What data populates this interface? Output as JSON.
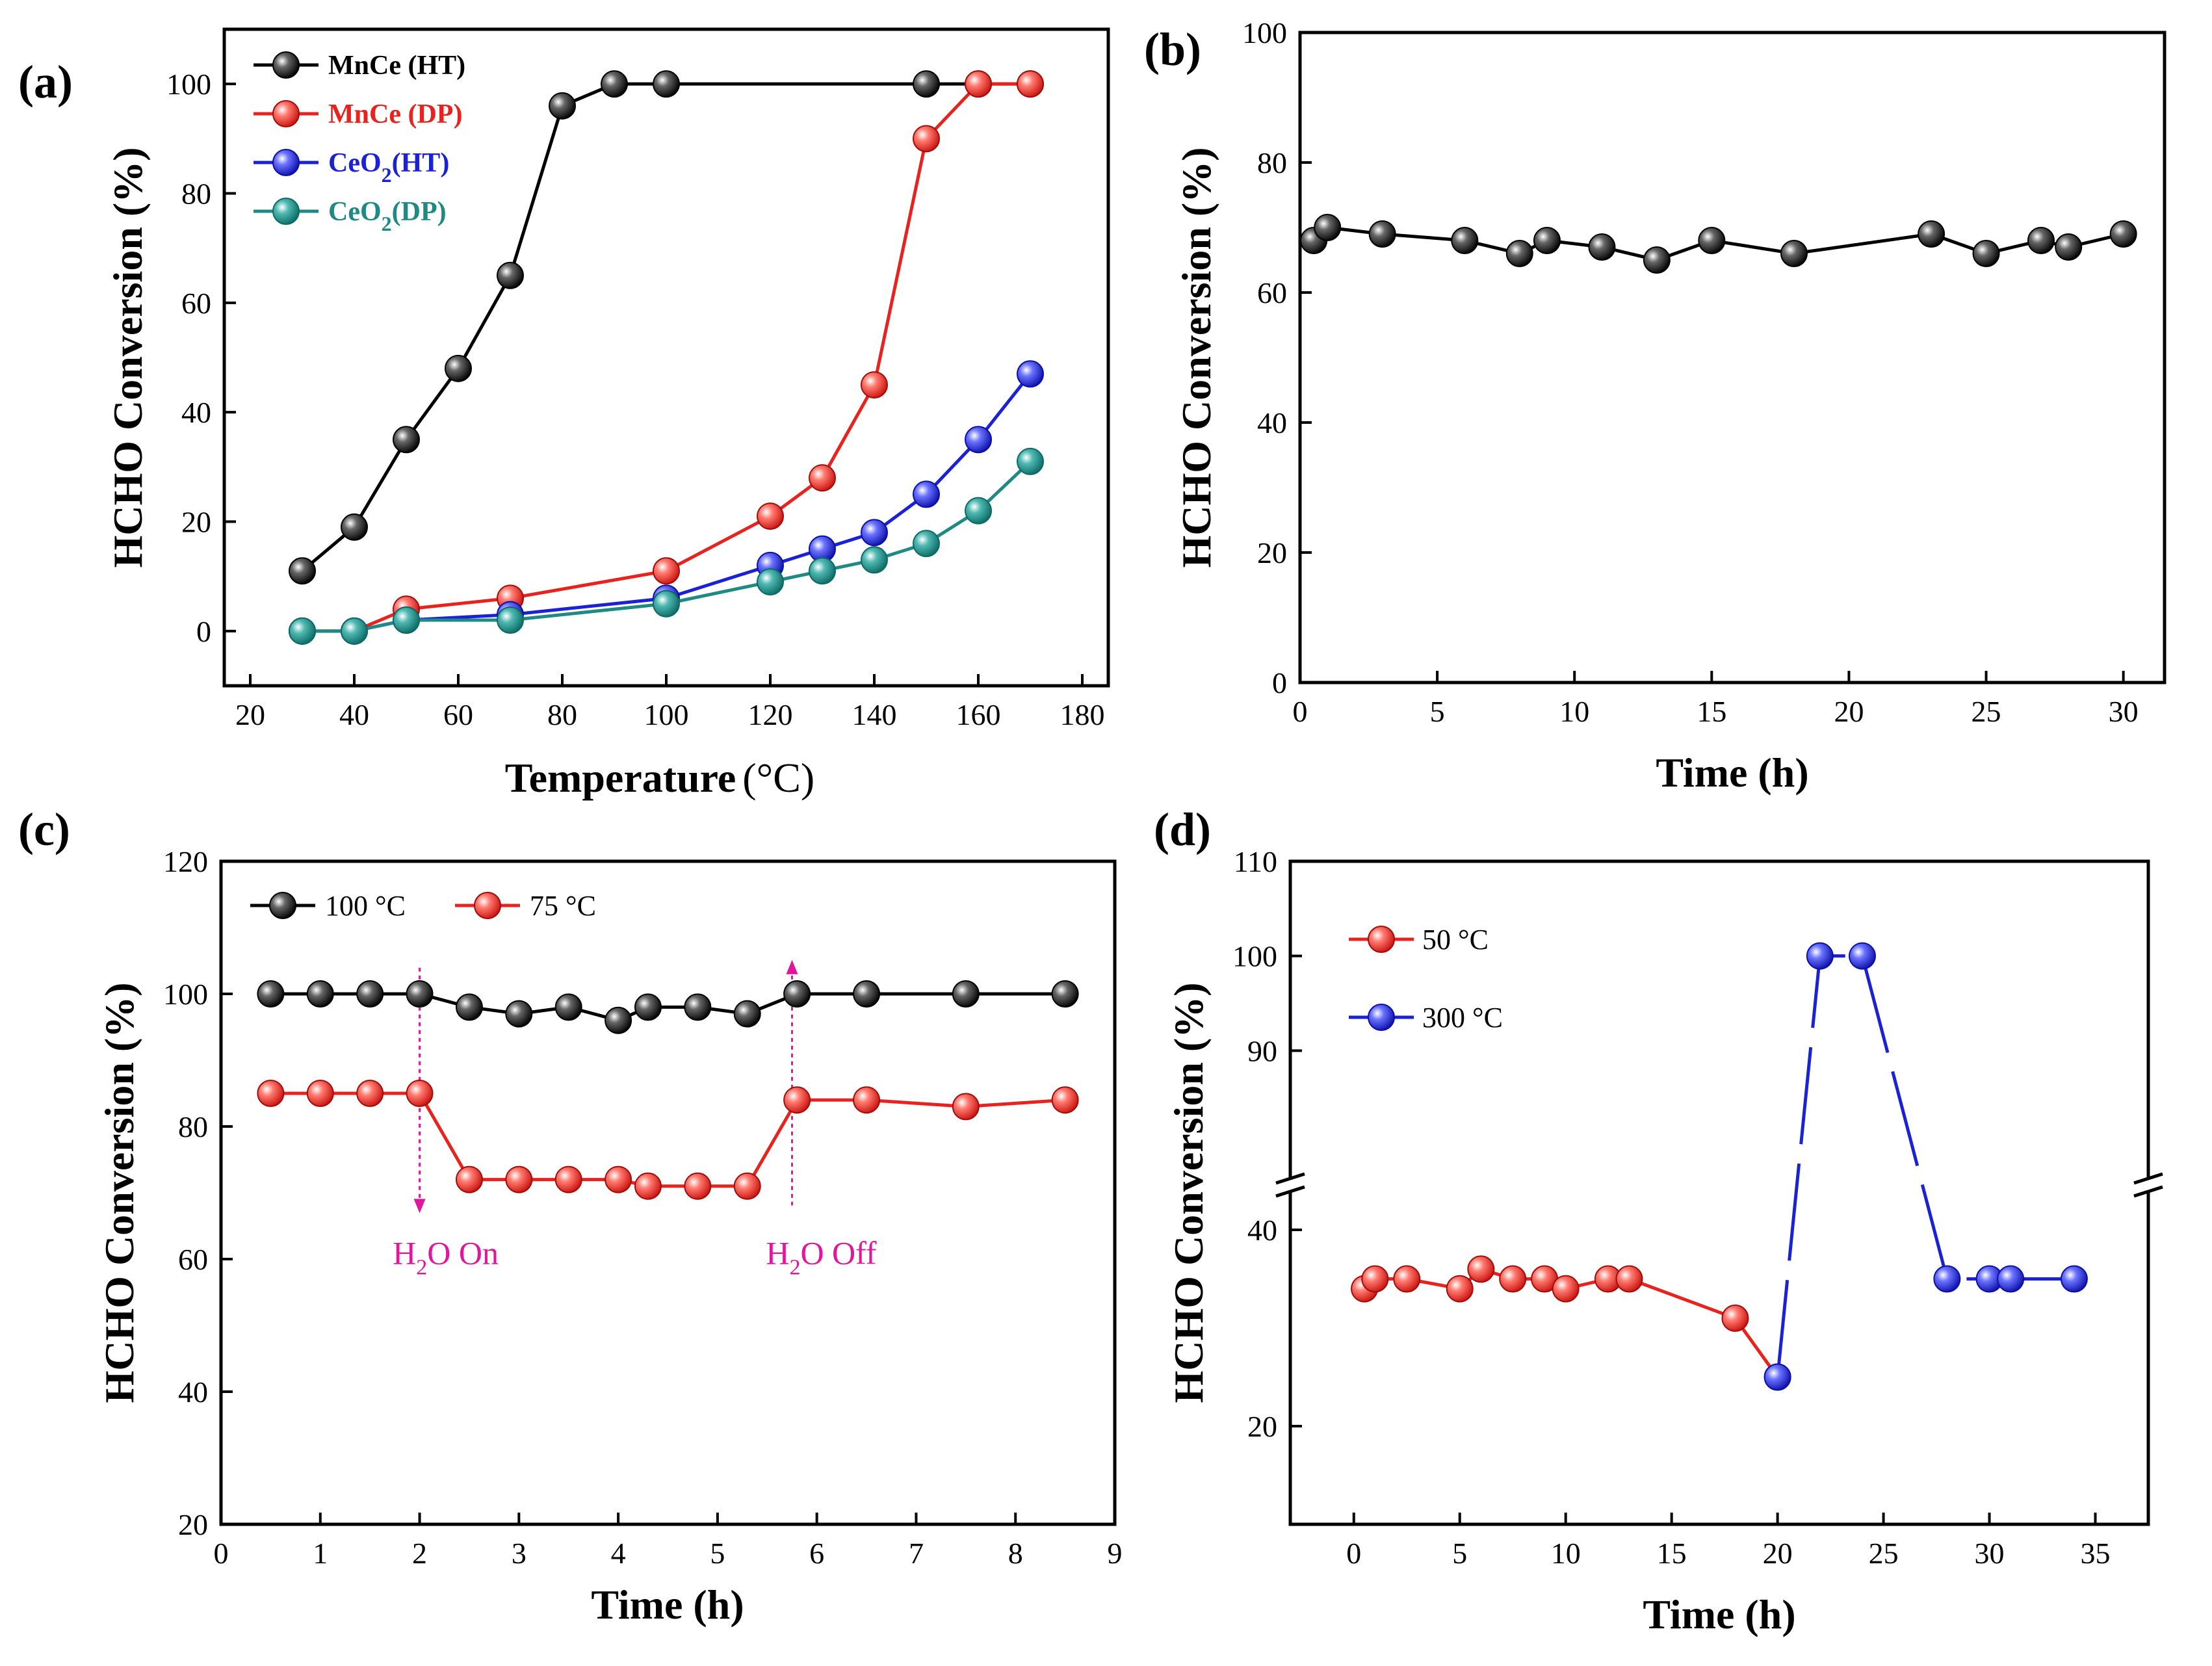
{
  "chart_data": [
    {
      "id": "a",
      "type": "line",
      "panel_label": "(a)",
      "title": "",
      "xlabel": "Temperature",
      "xunit": "(°C)",
      "ylabel": "HCHO Conversion (%)",
      "xlim": [
        15,
        185
      ],
      "ylim": [
        -10,
        110
      ],
      "xticks": [
        20,
        40,
        60,
        80,
        100,
        120,
        140,
        160,
        180
      ],
      "yticks": [
        0,
        20,
        40,
        60,
        80,
        100
      ],
      "legend_position": "top-left",
      "series": [
        {
          "name": "MnCe (HT)",
          "label_main": "MnCe (HT)",
          "label_sub": "",
          "label_tail": "",
          "color": "#000000",
          "label_color": "#000000",
          "x": [
            30,
            40,
            50,
            60,
            70,
            80,
            90,
            100,
            150,
            160,
            170
          ],
          "y": [
            11,
            19,
            35,
            48,
            65,
            96,
            100,
            100,
            100,
            100,
            100
          ]
        },
        {
          "name": "MnCe (DP)",
          "label_main": "MnCe (DP)",
          "label_sub": "",
          "label_tail": "",
          "color": "#e8221f",
          "label_color": "#e8221f",
          "x": [
            30,
            40,
            50,
            70,
            100,
            120,
            130,
            140,
            150,
            160,
            170
          ],
          "y": [
            0,
            0,
            4,
            6,
            11,
            21,
            28,
            45,
            90,
            100,
            100
          ]
        },
        {
          "name": "CeO2(HT)",
          "label_main": "CeO",
          "label_sub": "2",
          "label_tail": "(HT)",
          "color": "#1b22d6",
          "label_color": "#1b22d6",
          "x": [
            30,
            40,
            50,
            70,
            100,
            120,
            130,
            140,
            150,
            160,
            170
          ],
          "y": [
            0,
            0,
            2,
            3,
            6,
            12,
            15,
            18,
            25,
            35,
            47
          ]
        },
        {
          "name": "CeO2(DP)",
          "label_main": "CeO",
          "label_sub": "2",
          "label_tail": "(DP)",
          "color": "#1f8a84",
          "label_color": "#1f8a84",
          "x": [
            30,
            40,
            50,
            70,
            100,
            120,
            130,
            140,
            150,
            160,
            170
          ],
          "y": [
            0,
            0,
            2,
            2,
            5,
            9,
            11,
            13,
            16,
            22,
            31
          ]
        }
      ]
    },
    {
      "id": "b",
      "type": "line",
      "panel_label": "(b)",
      "title": "",
      "xlabel": "Time (h)",
      "xunit": "",
      "ylabel": "HCHO Conversion (%)",
      "xlim": [
        0,
        31.5
      ],
      "ylim": [
        0,
        100
      ],
      "xticks": [
        0,
        5,
        10,
        15,
        20,
        25,
        30
      ],
      "yticks": [
        0,
        20,
        40,
        60,
        80,
        100
      ],
      "legend_position": "none",
      "series": [
        {
          "name": "",
          "color": "#000000",
          "x": [
            0.5,
            1,
            3,
            6,
            8,
            9,
            11,
            13,
            15,
            18,
            23,
            25,
            27,
            28,
            30
          ],
          "y": [
            68,
            70,
            69,
            68,
            66,
            68,
            67,
            65,
            68,
            66,
            69,
            66,
            68,
            67,
            69
          ]
        }
      ]
    },
    {
      "id": "c",
      "type": "line",
      "panel_label": "(c)",
      "title": "",
      "xlabel": "Time (h)",
      "xunit": "",
      "ylabel": "HCHO Conversion (%)",
      "xlim": [
        0,
        9
      ],
      "ylim": [
        20,
        120
      ],
      "xticks": [
        0,
        1,
        2,
        3,
        4,
        5,
        6,
        7,
        8,
        9
      ],
      "yticks": [
        20,
        40,
        60,
        80,
        100,
        120
      ],
      "legend_position": "top-left",
      "series": [
        {
          "name": "100 °C",
          "color": "#000000",
          "x": [
            0.5,
            1,
            1.5,
            2,
            2.5,
            3,
            3.5,
            4,
            4.3,
            4.8,
            5.3,
            5.8,
            6.5,
            7.5,
            8.5
          ],
          "y": [
            100,
            100,
            100,
            100,
            98,
            97,
            98,
            96,
            98,
            98,
            97,
            100,
            100,
            100,
            100
          ]
        },
        {
          "name": "75 °C",
          "color": "#e8221f",
          "x": [
            0.5,
            1,
            1.5,
            2,
            2.5,
            3,
            3.5,
            4,
            4.3,
            4.8,
            5.3,
            5.8,
            6.5,
            7.5,
            8.5
          ],
          "y": [
            85,
            85,
            85,
            85,
            72,
            72,
            72,
            72,
            71,
            71,
            71,
            84,
            84,
            83,
            84
          ]
        }
      ],
      "annotations": [
        {
          "label_pre": "H",
          "label_sub": "2",
          "label_post": "O On",
          "x": 2,
          "color": "#e0169b"
        },
        {
          "label_pre": "H",
          "label_sub": "2",
          "label_post": "O Off",
          "x": 5.75,
          "color": "#e0169b"
        }
      ]
    },
    {
      "id": "d",
      "type": "line",
      "panel_label": "(d)",
      "title": "",
      "xlabel": "Time (h)",
      "xunit": "",
      "ylabel": "HCHO Conversion (%)",
      "xlim": [
        -3,
        37.5
      ],
      "ylim": [
        10,
        110
      ],
      "broken_axis": {
        "lower": [
          10,
          40
        ],
        "upper": [
          80,
          110
        ]
      },
      "xticks": [
        0,
        5,
        10,
        15,
        20,
        25,
        30,
        35
      ],
      "yticks": [
        20,
        40,
        90,
        100,
        110
      ],
      "legend_position": "top-left",
      "series": [
        {
          "name": "50 °C",
          "color": "#e8221f",
          "x": [
            0.5,
            1,
            2.5,
            5,
            6,
            7.5,
            9,
            10,
            12,
            13,
            18,
            20
          ],
          "y": [
            34,
            35,
            35,
            34,
            36,
            35,
            35,
            34,
            35,
            35,
            31,
            25
          ]
        },
        {
          "name": "300 °C",
          "color": "#1b22d6",
          "x": [
            20,
            22,
            24,
            28,
            30,
            31,
            34
          ],
          "y": [
            25,
            100,
            100,
            35,
            35,
            35,
            35
          ]
        }
      ]
    }
  ]
}
